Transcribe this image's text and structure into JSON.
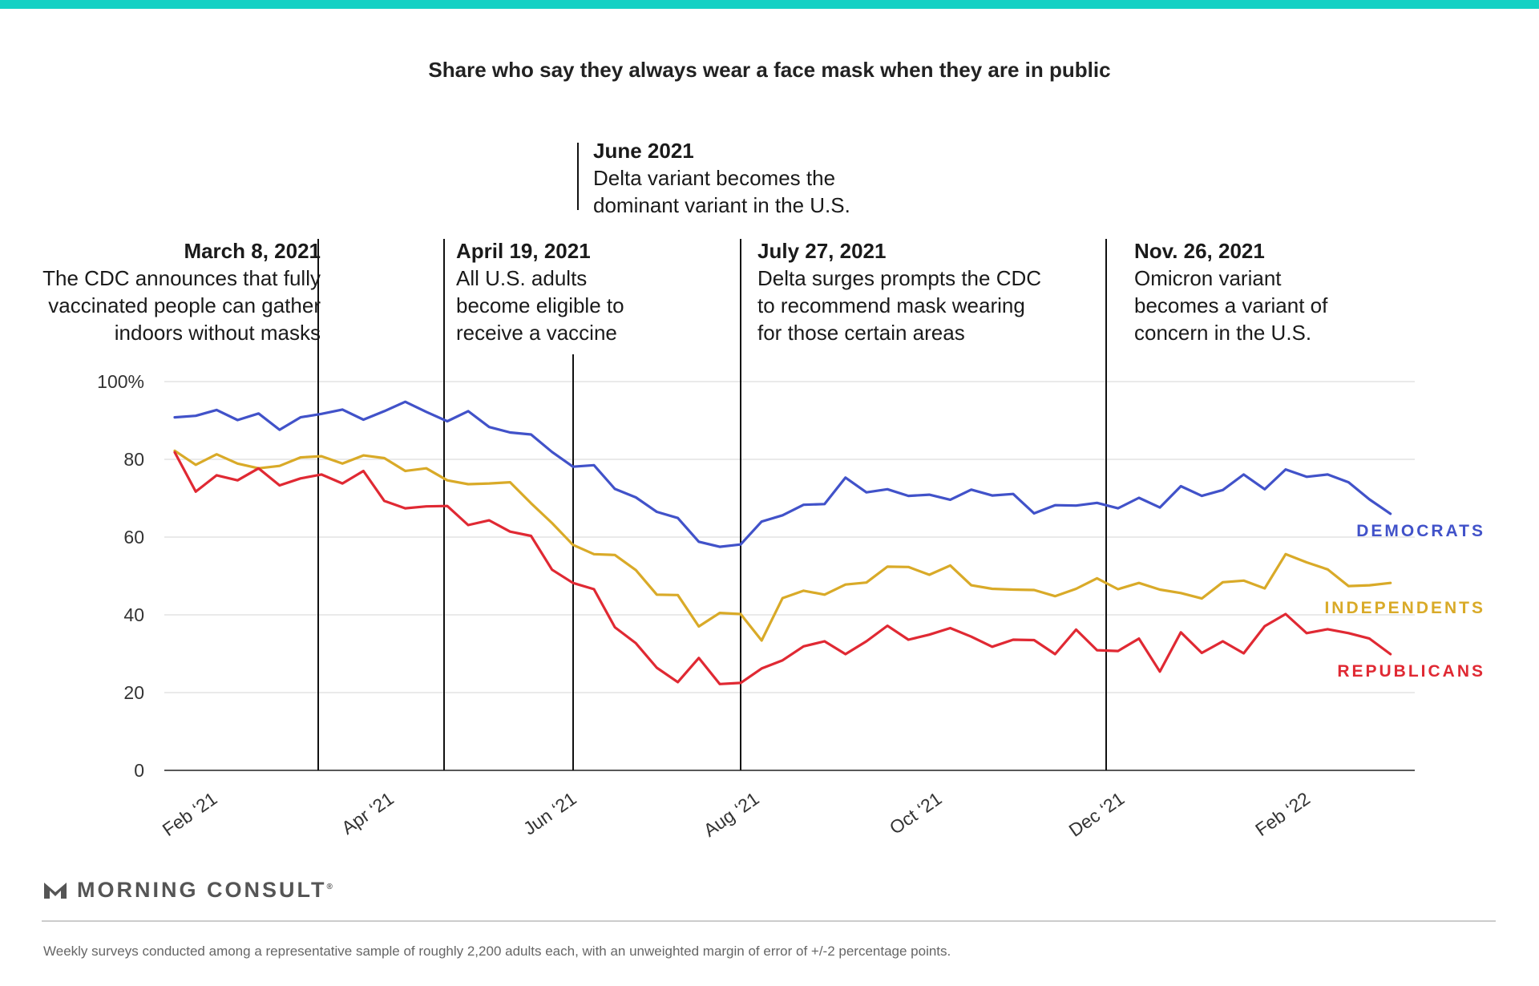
{
  "title": "Share who say they always wear a face mask when they are in public",
  "brand": {
    "name": "MORNING CONSULT",
    "mark": "®"
  },
  "footnote": "Weekly surveys conducted among a representative sample of roughly 2,200 adults each, with an unweighted margin of error of +/-2 percentage points.",
  "colors": {
    "accent_bar": "#14d1c4",
    "democrats": "#4152c9",
    "independents": "#d9aa28",
    "republicans": "#e02933",
    "grid": "#dddddd",
    "axis": "#222222"
  },
  "chart_data": {
    "type": "line",
    "x_start": "2021-01-19",
    "week_interval_days": 7,
    "ylim": [
      0,
      100
    ],
    "y_ticks": [
      0,
      20,
      40,
      60,
      80,
      100
    ],
    "y_tick_labels": [
      "0",
      "20",
      "40",
      "60",
      "80",
      "100%"
    ],
    "x_ticks": [
      {
        "date": "2021-02-01",
        "label": "Feb ‘21"
      },
      {
        "date": "2021-04-01",
        "label": "Apr ‘21"
      },
      {
        "date": "2021-06-01",
        "label": "Jun ‘21"
      },
      {
        "date": "2021-08-01",
        "label": "Aug ‘21"
      },
      {
        "date": "2021-10-01",
        "label": "Oct ‘21"
      },
      {
        "date": "2021-12-01",
        "label": "Dec ‘21"
      },
      {
        "date": "2022-02-01",
        "label": "Feb ‘22"
      }
    ],
    "series": [
      {
        "name": "DEMOCRATS",
        "color": "#4152c9",
        "values": [
          90.8,
          91.2,
          92.7,
          90.1,
          91.8,
          87.6,
          90.8,
          91.7,
          92.8,
          90.2,
          92.4,
          94.8,
          92.2,
          89.8,
          92.4,
          88.3,
          86.9,
          86.4,
          81.9,
          78.1,
          78.5,
          72.4,
          70.2,
          66.5,
          64.9,
          58.8,
          57.5,
          58.1,
          64.0,
          65.6,
          68.3,
          68.5,
          75.3,
          71.5,
          72.3,
          70.6,
          70.9,
          69.6,
          72.2,
          70.7,
          71.1,
          66.1,
          68.2,
          68.1,
          68.8,
          67.4,
          70.1,
          67.6,
          73.1,
          70.6,
          72.1,
          76.1,
          72.3,
          77.4,
          75.5,
          76.1,
          74.1,
          69.7,
          66.0
        ]
      },
      {
        "name": "INDEPENDENTS",
        "color": "#d9aa28",
        "values": [
          82.2,
          78.6,
          81.3,
          78.9,
          77.7,
          78.3,
          80.5,
          80.8,
          78.9,
          81.0,
          80.3,
          77.0,
          77.7,
          74.6,
          73.6,
          73.8,
          74.1,
          68.7,
          63.6,
          58.0,
          55.6,
          55.4,
          51.5,
          45.2,
          45.1,
          37.0,
          40.5,
          40.2,
          33.4,
          44.3,
          46.2,
          45.2,
          47.8,
          48.3,
          52.4,
          52.3,
          50.3,
          52.7,
          47.6,
          46.7,
          46.5,
          46.4,
          44.8,
          46.7,
          49.4,
          46.6,
          48.2,
          46.5,
          45.6,
          44.2,
          48.4,
          48.8,
          46.8,
          55.6,
          53.5,
          51.7,
          47.4,
          47.6,
          48.2
        ]
      },
      {
        "name": "REPUBLICANS",
        "color": "#e02933",
        "values": [
          81.8,
          71.7,
          75.9,
          74.6,
          77.7,
          73.3,
          75.1,
          76.1,
          73.8,
          77.0,
          69.3,
          67.4,
          67.9,
          68.0,
          63.1,
          64.3,
          61.4,
          60.3,
          51.6,
          48.2,
          46.6,
          36.8,
          32.7,
          26.4,
          22.7,
          28.9,
          22.2,
          22.5,
          26.2,
          28.3,
          31.9,
          33.2,
          29.9,
          33.2,
          37.2,
          33.6,
          34.9,
          36.6,
          34.4,
          31.8,
          33.6,
          33.5,
          29.9,
          36.2,
          30.9,
          30.7,
          33.9,
          25.4,
          35.5,
          30.2,
          33.2,
          30.1,
          37.1,
          40.2,
          35.3,
          36.3,
          35.3,
          33.9,
          29.9
        ]
      }
    ],
    "events": [
      {
        "date": "2021-03-08",
        "title": "March 8, 2021",
        "lines": [
          "The CDC announces that fully",
          "vaccinated people can gather",
          "indoors without masks"
        ],
        "align": "right"
      },
      {
        "date": "2021-04-19",
        "title": "April 19, 2021",
        "lines": [
          "All U.S. adults",
          "become eligible to",
          "receive a vaccine"
        ],
        "align": "left"
      },
      {
        "date": "2021-06-01",
        "title": "June 2021",
        "lines": [
          "Delta variant becomes the",
          "dominant variant in the U.S."
        ],
        "align": "left"
      },
      {
        "date": "2021-07-27",
        "title": "July 27, 2021",
        "lines": [
          "Delta surges prompts the CDC",
          "to recommend mask wearing",
          "for those certain areas"
        ],
        "align": "left"
      },
      {
        "date": "2021-11-26",
        "title": "Nov. 26, 2021",
        "lines": [
          "Omicron variant",
          "becomes a variant of",
          "concern in the U.S."
        ],
        "align": "left"
      }
    ]
  }
}
